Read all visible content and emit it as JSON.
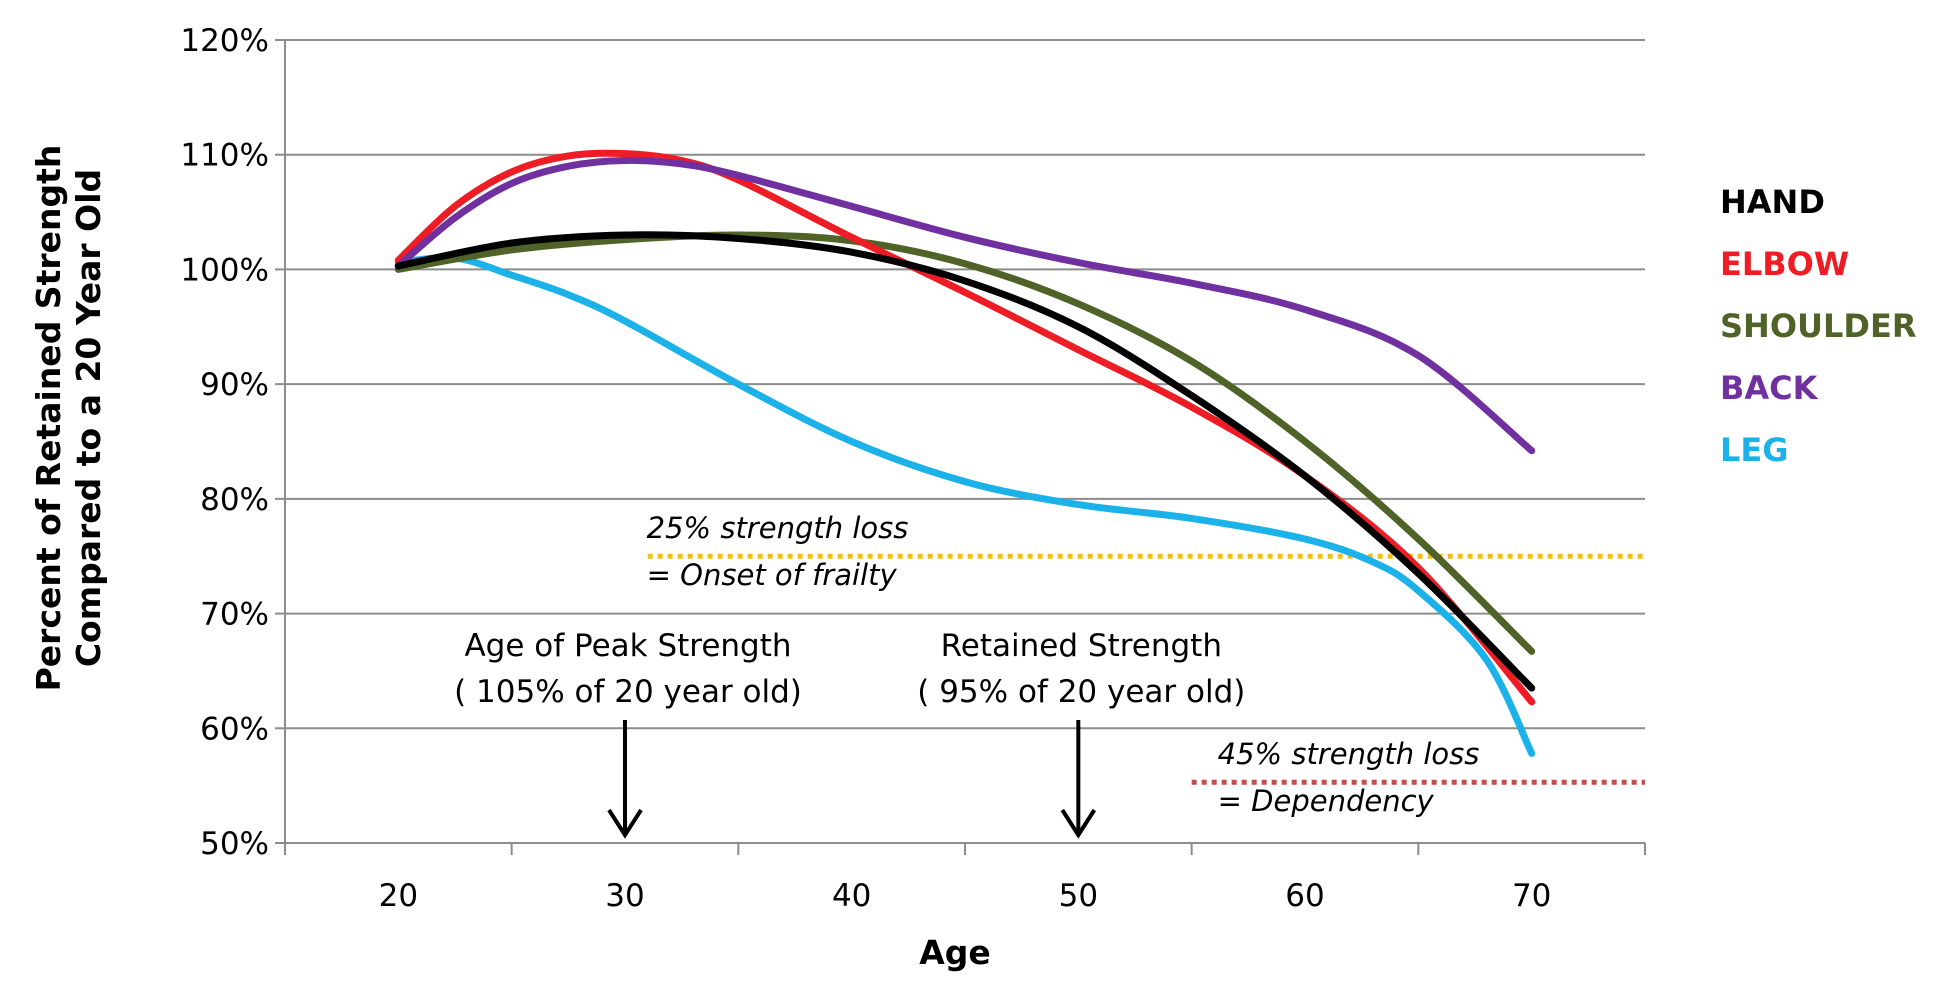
{
  "chart_data": {
    "type": "line",
    "xlabel": "Age",
    "ylabel_lines": [
      "Percent of Retained Strength",
      "Compared to a 20 Year Old"
    ],
    "xlim": [
      15,
      75
    ],
    "ylim": [
      50,
      120
    ],
    "x_ticks": [
      20,
      30,
      40,
      50,
      60,
      70
    ],
    "x_tick_labels": [
      "20",
      "30",
      "40",
      "50",
      "60",
      "70"
    ],
    "y_ticks": [
      50,
      60,
      70,
      80,
      90,
      100,
      110,
      120
    ],
    "y_tick_labels": [
      "50%",
      "60%",
      "70%",
      "80%",
      "90%",
      "100%",
      "110%",
      "120%"
    ],
    "grid": "horizontal",
    "legend_position": "right",
    "series": [
      {
        "name": "HAND",
        "color": "#000000",
        "x": [
          20,
          25,
          30,
          35,
          40,
          45,
          50,
          55,
          60,
          65,
          70
        ],
        "values": [
          100.3,
          102.3,
          103.0,
          102.7,
          101.5,
          99.0,
          95.0,
          89.0,
          82.0,
          73.5,
          63.5
        ]
      },
      {
        "name": "ELBOW",
        "color": "#ee1c25",
        "x": [
          20,
          22.5,
          25,
          27.5,
          30,
          32.5,
          35,
          40,
          45,
          50,
          55,
          60,
          65,
          70
        ],
        "values": [
          100.8,
          105.5,
          108.5,
          109.9,
          110.1,
          109.5,
          107.8,
          102.8,
          98.0,
          93.0,
          88.0,
          82.0,
          74.0,
          62.3
        ]
      },
      {
        "name": "SHOULDER",
        "color": "#4f6228",
        "x": [
          20,
          25,
          30,
          35,
          40,
          45,
          50,
          55,
          60,
          65,
          70
        ],
        "values": [
          100.0,
          101.7,
          102.6,
          103.0,
          102.5,
          100.5,
          97.0,
          92.0,
          85.0,
          76.5,
          66.7
        ]
      },
      {
        "name": "BACK",
        "color": "#7030a0",
        "x": [
          20,
          22.5,
          25,
          27.5,
          30,
          32.5,
          35,
          40,
          45,
          50,
          55,
          60,
          65,
          70
        ],
        "values": [
          100.3,
          104.5,
          107.5,
          109.0,
          109.5,
          109.2,
          108.2,
          105.5,
          102.8,
          100.6,
          98.8,
          96.5,
          92.5,
          84.2
        ]
      },
      {
        "name": "LEG",
        "color": "#1ab2e8",
        "x": [
          20,
          22.5,
          25,
          27.5,
          30,
          35,
          40,
          45,
          50,
          55,
          60,
          63,
          65,
          68,
          70
        ],
        "values": [
          100.6,
          101.0,
          99.5,
          97.8,
          95.5,
          90.0,
          85.0,
          81.5,
          79.5,
          78.3,
          76.5,
          74.5,
          72.0,
          66.0,
          57.8
        ]
      }
    ],
    "reference_lines": [
      {
        "y": 75,
        "x_start": 31,
        "x_end": 75,
        "color": "#f2be1b",
        "label_top": "25% strength loss",
        "label_bottom": "= Onset of frailty"
      },
      {
        "y": 55.3,
        "x_start": 55,
        "x_end": 75,
        "color": "#c0504d",
        "label_top": "45% strength loss",
        "label_bottom": "= Dependency"
      }
    ],
    "arrows": [
      {
        "x": 30,
        "label_top": "Age of Peak Strength",
        "label_bottom": "( 105% of 20 year old)"
      },
      {
        "x": 50,
        "label_top": "Retained Strength",
        "label_bottom": "( 95% of 20 year old)"
      }
    ]
  }
}
